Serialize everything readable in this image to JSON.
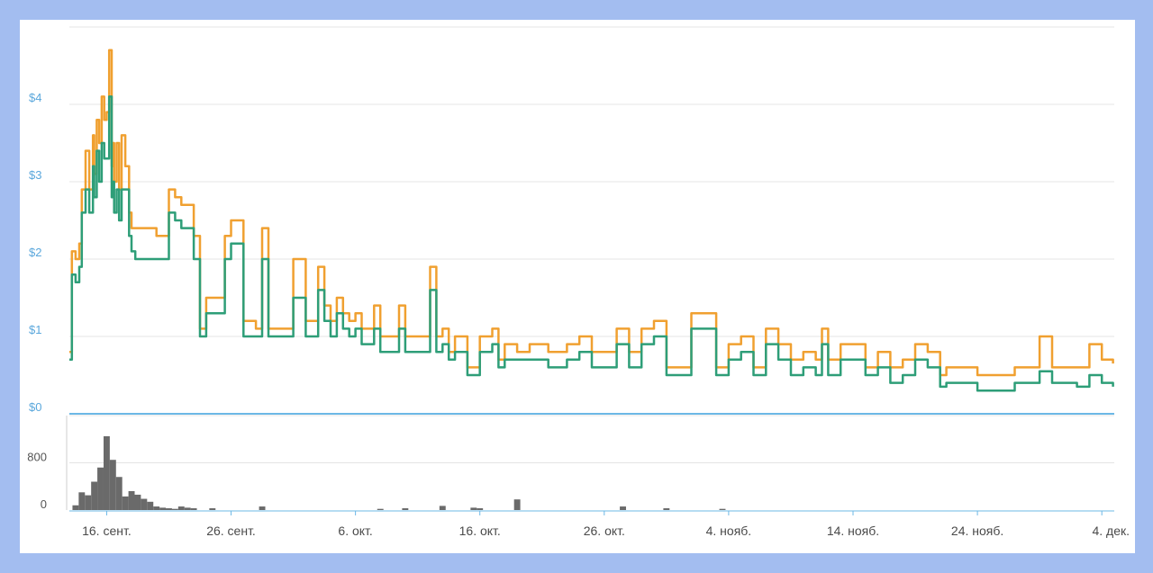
{
  "chart_data": [
    {
      "type": "line",
      "y_tick_labels": [
        "$0",
        "$1",
        "$2",
        "$3",
        "$4"
      ],
      "y_ticks": [
        0,
        1,
        2,
        3,
        4
      ],
      "ylim": [
        0,
        5
      ],
      "x_tick_labels": [
        "16. сент.",
        "26. сент.",
        "6. окт.",
        "16. окт.",
        "26. окт.",
        "4. нояб.",
        "14. нояб.",
        "24. нояб.",
        "4. дек."
      ],
      "x_ticks": [
        3,
        13,
        23,
        33,
        43,
        53,
        63,
        73,
        83
      ],
      "xlim": [
        0,
        84
      ],
      "grid": true,
      "colors": {
        "orange": "#f0a030",
        "green": "#2e9e78",
        "baseline": "#6cb8e6"
      },
      "series": [
        {
          "x": [
            0,
            0.2,
            0.5,
            0.8,
            1.0,
            1.3,
            1.6,
            1.9,
            2.0,
            2.2,
            2.4,
            2.6,
            2.8,
            3.0,
            3.2,
            3.4,
            3.5,
            3.6,
            3.8,
            4.0,
            4.2,
            4.5,
            4.8,
            5.0,
            5.3,
            6.0,
            7.0,
            8.0,
            8.5,
            9.0,
            10.0,
            10.5,
            11.0,
            12.0,
            12.5,
            13.0,
            14.0,
            15.0,
            15.5,
            16.0,
            16.5,
            17.0,
            18.0,
            19.0,
            20.0,
            20.5,
            21.0,
            21.5,
            22.0,
            22.5,
            23.0,
            23.5,
            24.0,
            24.5,
            25.0,
            26.0,
            26.5,
            27.0,
            28.0,
            29.0,
            29.5,
            30.0,
            30.5,
            31.0,
            32.0,
            33.0,
            34.0,
            34.5,
            35.0,
            36.0,
            37.0,
            37.5,
            38.0,
            38.5,
            39.0,
            40.0,
            41.0,
            42.0,
            43.0,
            44.0,
            45.0,
            46.0,
            47.0,
            48.0,
            49.0,
            50.0,
            51.0,
            52.0,
            53.0,
            54.0,
            55.0,
            56.0,
            57.0,
            58.0,
            59.0,
            60.0,
            60.5,
            61.0,
            62.0,
            63.0,
            64.0,
            65.0,
            66.0,
            67.0,
            68.0,
            69.0,
            70.0,
            70.5,
            71.0,
            72.0,
            73.0,
            74.0,
            75.0,
            76.0,
            77.0,
            78.0,
            79.0,
            80.0,
            81.0,
            82.0,
            83.0,
            83.9
          ],
          "values": [
            0.8,
            2.1,
            2.0,
            2.2,
            2.9,
            3.4,
            2.9,
            3.6,
            3.1,
            3.8,
            3.5,
            4.1,
            3.8,
            3.9,
            4.7,
            3.2,
            3.5,
            3.0,
            3.5,
            2.9,
            3.6,
            3.2,
            2.6,
            2.4,
            2.4,
            2.4,
            2.3,
            2.9,
            2.8,
            2.7,
            2.3,
            1.1,
            1.5,
            1.5,
            2.3,
            2.5,
            1.2,
            1.1,
            2.4,
            1.1,
            1.1,
            1.1,
            2.0,
            1.2,
            1.9,
            1.4,
            1.2,
            1.5,
            1.3,
            1.2,
            1.3,
            1.1,
            1.1,
            1.4,
            1.0,
            1.0,
            1.4,
            1.0,
            1.0,
            1.9,
            1.0,
            1.1,
            0.8,
            1.0,
            0.6,
            1.0,
            1.1,
            0.7,
            0.9,
            0.8,
            0.9,
            0.9,
            0.9,
            0.8,
            0.8,
            0.9,
            1.0,
            0.8,
            0.8,
            1.1,
            0.8,
            1.1,
            1.2,
            0.6,
            0.6,
            1.3,
            1.3,
            0.6,
            0.9,
            1.0,
            0.6,
            1.1,
            0.9,
            0.7,
            0.8,
            0.7,
            1.1,
            0.7,
            0.9,
            0.9,
            0.6,
            0.8,
            0.6,
            0.7,
            0.9,
            0.8,
            0.5,
            0.6,
            0.6,
            0.6,
            0.5,
            0.5,
            0.5,
            0.6,
            0.6,
            1.0,
            0.6,
            0.6,
            0.6,
            0.9,
            0.7,
            0.65
          ],
          "line_color": "#f0a030"
        },
        {
          "x": [
            0,
            0.2,
            0.5,
            0.8,
            1.0,
            1.3,
            1.6,
            1.9,
            2.0,
            2.2,
            2.4,
            2.6,
            2.8,
            3.0,
            3.2,
            3.4,
            3.5,
            3.6,
            3.8,
            4.0,
            4.2,
            4.5,
            4.8,
            5.0,
            5.3,
            6.0,
            7.0,
            8.0,
            8.5,
            9.0,
            10.0,
            10.5,
            11.0,
            12.0,
            12.5,
            13.0,
            14.0,
            15.0,
            15.5,
            16.0,
            16.5,
            17.0,
            18.0,
            19.0,
            20.0,
            20.5,
            21.0,
            21.5,
            22.0,
            22.5,
            23.0,
            23.5,
            24.0,
            24.5,
            25.0,
            26.0,
            26.5,
            27.0,
            28.0,
            29.0,
            29.5,
            30.0,
            30.5,
            31.0,
            32.0,
            33.0,
            34.0,
            34.5,
            35.0,
            36.0,
            37.0,
            37.5,
            38.0,
            38.5,
            39.0,
            40.0,
            41.0,
            42.0,
            43.0,
            44.0,
            45.0,
            46.0,
            47.0,
            48.0,
            49.0,
            50.0,
            51.0,
            52.0,
            53.0,
            54.0,
            55.0,
            56.0,
            57.0,
            58.0,
            59.0,
            60.0,
            60.5,
            61.0,
            62.0,
            63.0,
            64.0,
            65.0,
            66.0,
            67.0,
            68.0,
            69.0,
            70.0,
            70.5,
            71.0,
            72.0,
            73.0,
            74.0,
            75.0,
            76.0,
            77.0,
            78.0,
            79.0,
            80.0,
            81.0,
            82.0,
            83.0,
            83.9
          ],
          "values": [
            0.7,
            1.8,
            1.7,
            1.9,
            2.6,
            2.9,
            2.6,
            3.2,
            2.8,
            3.4,
            3.0,
            3.5,
            3.3,
            3.3,
            4.1,
            2.8,
            3.0,
            2.6,
            2.9,
            2.5,
            2.9,
            2.9,
            2.3,
            2.1,
            2.0,
            2.0,
            2.0,
            2.6,
            2.5,
            2.4,
            2.0,
            1.0,
            1.3,
            1.3,
            2.0,
            2.2,
            1.0,
            1.0,
            2.0,
            1.0,
            1.0,
            1.0,
            1.5,
            1.0,
            1.6,
            1.2,
            1.0,
            1.3,
            1.1,
            1.0,
            1.1,
            0.9,
            0.9,
            1.1,
            0.8,
            0.8,
            1.1,
            0.8,
            0.8,
            1.6,
            0.8,
            0.9,
            0.7,
            0.8,
            0.5,
            0.8,
            0.9,
            0.6,
            0.7,
            0.7,
            0.7,
            0.7,
            0.7,
            0.6,
            0.6,
            0.7,
            0.8,
            0.6,
            0.6,
            0.9,
            0.6,
            0.9,
            1.0,
            0.5,
            0.5,
            1.1,
            1.1,
            0.5,
            0.7,
            0.8,
            0.5,
            0.9,
            0.7,
            0.5,
            0.6,
            0.5,
            0.9,
            0.5,
            0.7,
            0.7,
            0.5,
            0.6,
            0.4,
            0.5,
            0.7,
            0.6,
            0.35,
            0.4,
            0.4,
            0.4,
            0.3,
            0.3,
            0.3,
            0.4,
            0.4,
            0.55,
            0.4,
            0.4,
            0.35,
            0.5,
            0.4,
            0.35
          ],
          "line_color": "#2e9e78"
        }
      ]
    },
    {
      "type": "bar",
      "y_tick_labels": [
        "0",
        "800"
      ],
      "y_ticks": [
        0,
        800
      ],
      "ylim": [
        0,
        1600
      ],
      "bar_color": "#6a6a6a",
      "x": [
        0.5,
        1.0,
        1.5,
        2.0,
        2.5,
        3.0,
        3.5,
        4.0,
        4.5,
        5.0,
        5.5,
        6.0,
        6.5,
        7.0,
        7.5,
        8.0,
        8.5,
        9.0,
        9.5,
        10.0,
        11.5,
        15.5,
        25.0,
        27.0,
        30.0,
        32.5,
        33.0,
        36.0,
        44.5,
        48.0,
        52.5
      ],
      "values": [
        80,
        300,
        250,
        480,
        720,
        1250,
        850,
        560,
        230,
        320,
        260,
        190,
        140,
        60,
        40,
        30,
        20,
        60,
        40,
        30,
        30,
        60,
        20,
        30,
        70,
        40,
        30,
        180,
        60,
        30,
        20
      ]
    }
  ]
}
